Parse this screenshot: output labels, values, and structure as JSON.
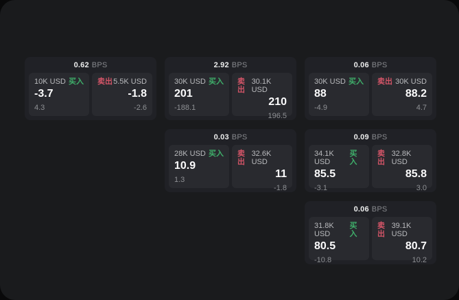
{
  "labels": {
    "bps": "BPS",
    "buy": "买入",
    "sell": "卖出"
  },
  "colors": {
    "buy_green": "#3fae6a",
    "sell_red": "#d25467",
    "value_white": "#fcfcfd"
  },
  "cards": [
    {
      "bps": "0.62",
      "buy": {
        "size": "10K USD",
        "value": "-3.7",
        "delta": "4.3"
      },
      "sell": {
        "size": "5.5K USD",
        "value": "-1.8",
        "delta": "-2.6"
      }
    },
    {
      "bps": "2.92",
      "buy": {
        "size": "30K USD",
        "value": "201",
        "delta": "-188.1"
      },
      "sell": {
        "size": "30.1K USD",
        "value": "210",
        "delta": "196.5"
      }
    },
    {
      "bps": "0.06",
      "buy": {
        "size": "30K USD",
        "value": "88",
        "delta": "-4.9"
      },
      "sell": {
        "size": "30K USD",
        "value": "88.2",
        "delta": "4.7"
      }
    },
    {
      "bps": "0.03",
      "buy": {
        "size": "28K USD",
        "value": "10.9",
        "delta": "1.3"
      },
      "sell": {
        "size": "32.6K USD",
        "value": "11",
        "delta": "-1.8"
      }
    },
    {
      "bps": "0.09",
      "buy": {
        "size": "34.1K USD",
        "value": "85.5",
        "delta": "-3.1"
      },
      "sell": {
        "size": "32.8K USD",
        "value": "85.8",
        "delta": "3.0"
      }
    },
    {
      "bps": "0.06",
      "buy": {
        "size": "31.8K USD",
        "value": "80.5",
        "delta": "-10.8"
      },
      "sell": {
        "size": "39.1K USD",
        "value": "80.7",
        "delta": "10.2"
      }
    }
  ]
}
